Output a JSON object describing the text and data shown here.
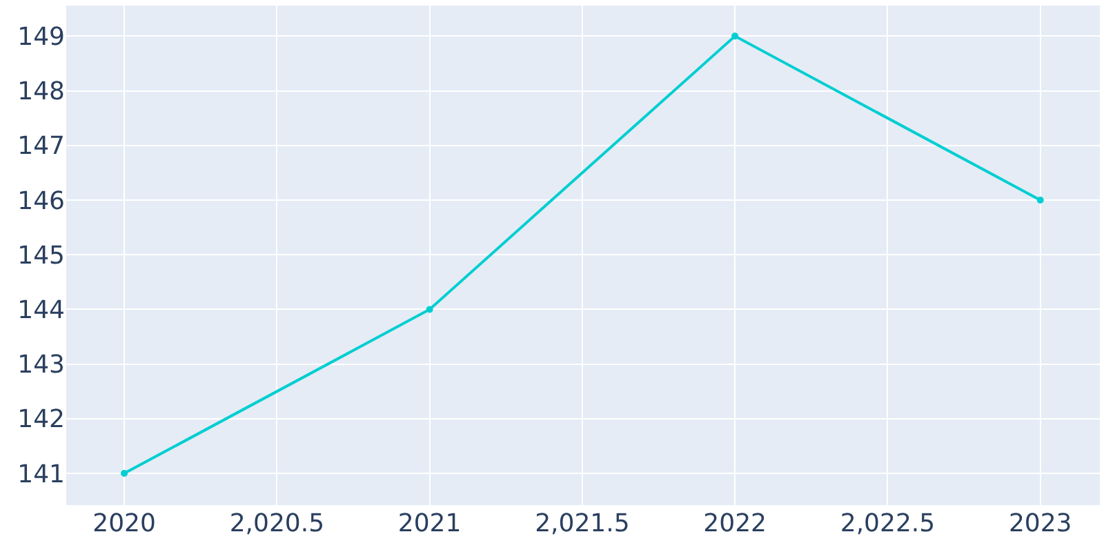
{
  "chart_data": {
    "type": "line",
    "x": [
      2020,
      2021,
      2022,
      2023
    ],
    "series": [
      {
        "color": "#00ced1",
        "values": [
          141,
          144,
          149,
          146
        ]
      }
    ],
    "xlim": [
      2019.81,
      2023.195
    ],
    "ylim": [
      140.42,
      149.56
    ],
    "xticks": [
      2020,
      {
        "value": 2020.5,
        "label": "2,020.5"
      },
      2021,
      {
        "value": 2021.5,
        "label": "2,021.5"
      },
      2022,
      {
        "value": 2022.5,
        "label": "2,022.5"
      },
      2023
    ],
    "yticks": [
      141,
      142,
      143,
      144,
      145,
      146,
      147,
      148,
      149
    ],
    "grid": true,
    "marker": "circle",
    "line_style": "solid",
    "legend": false
  }
}
